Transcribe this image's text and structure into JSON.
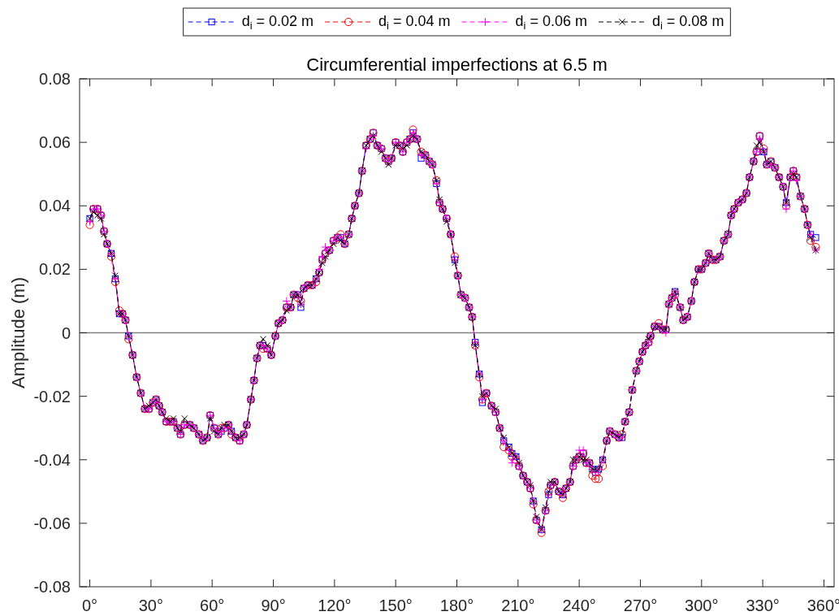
{
  "chart_data": {
    "type": "line",
    "title": "Circumferential imperfections at 6.5 m",
    "ylabel": "Amplitude (m)",
    "x": [
      0,
      1.8,
      3.8,
      5.5,
      7,
      8.5,
      10.5,
      12.5,
      14.5,
      16,
      17.5,
      19,
      21,
      23,
      25,
      27,
      29,
      31,
      32.5,
      34,
      35.5,
      37.5,
      39.5,
      41,
      43,
      44.5,
      46.5,
      49,
      51,
      53.5,
      55.5,
      57.5,
      59,
      61,
      63,
      64.5,
      66,
      68,
      69.5,
      71.5,
      73.5,
      75.5,
      77,
      79,
      80.5,
      82,
      83.5,
      85,
      87,
      89,
      91,
      92.5,
      94.5,
      96.5,
      98.5,
      100,
      102,
      103.5,
      105,
      107,
      109,
      111,
      112.5,
      114,
      115.5,
      117.5,
      119.5,
      121.5,
      123,
      125,
      127,
      128.5,
      130,
      132,
      133.5,
      135.5,
      137.5,
      139,
      141,
      143,
      145,
      146.5,
      148,
      150,
      152,
      153.5,
      155.5,
      157,
      158.5,
      160.5,
      162.5,
      164.5,
      166.5,
      168,
      170,
      171.5,
      173,
      175,
      177,
      179,
      180.5,
      182,
      184,
      186,
      187.5,
      189,
      191,
      192.5,
      194.5,
      197,
      199,
      201,
      203,
      205.5,
      207,
      209,
      210.5,
      212.5,
      214.5,
      216,
      217.5,
      219,
      221.5,
      223.5,
      225,
      226,
      228,
      230,
      232,
      233.5,
      235.5,
      237,
      238.5,
      240,
      242,
      243.5,
      245,
      246.5,
      248,
      249.5,
      251.5,
      253.5,
      255,
      257.5,
      259.5,
      261,
      262.5,
      264.5,
      266,
      268,
      269.5,
      271,
      272.5,
      274,
      275,
      277,
      279,
      281,
      282.5,
      284,
      285.5,
      287,
      289.5,
      291,
      293,
      295,
      296.5,
      298.5,
      300,
      302,
      303.5,
      305.5,
      307,
      309,
      311,
      313,
      314.5,
      316,
      318,
      320,
      322,
      323.5,
      325.5,
      327,
      328.5,
      330.5,
      332,
      334,
      336,
      338,
      340,
      341.5,
      343.5,
      345,
      346.5,
      348.5,
      350.5,
      352,
      353.5,
      356
    ],
    "series": [
      {
        "name": "d$_{i}$ = 0.02 m",
        "color": "#0000ff",
        "marker": "square",
        "values": [
          0.036,
          0.039,
          0.039,
          0.037,
          0.032,
          0.028,
          0.025,
          0.017,
          0.006,
          0.006,
          0.004,
          -0.001,
          -0.007,
          -0.014,
          -0.019,
          -0.024,
          -0.024,
          -0.022,
          -0.021,
          -0.023,
          -0.025,
          -0.028,
          -0.028,
          -0.028,
          -0.03,
          -0.032,
          -0.029,
          -0.029,
          -0.03,
          -0.032,
          -0.034,
          -0.033,
          -0.026,
          -0.03,
          -0.032,
          -0.031,
          -0.03,
          -0.029,
          -0.031,
          -0.033,
          -0.034,
          -0.032,
          -0.029,
          -0.021,
          -0.015,
          -0.008,
          -0.004,
          -0.004,
          -0.005,
          -0.007,
          -0.001,
          0.003,
          0.004,
          0.008,
          0.008,
          0.012,
          0.012,
          0.008,
          0.014,
          0.015,
          0.015,
          0.017,
          0.019,
          0.023,
          0.025,
          0.026,
          0.029,
          0.03,
          0.03,
          0.028,
          0.031,
          0.036,
          0.04,
          0.044,
          0.051,
          0.059,
          0.061,
          0.063,
          0.059,
          0.058,
          0.055,
          0.054,
          0.055,
          0.06,
          0.059,
          0.057,
          0.06,
          0.061,
          0.063,
          0.061,
          0.055,
          0.056,
          0.054,
          0.053,
          0.047,
          0.041,
          0.039,
          0.036,
          0.031,
          0.023,
          0.018,
          0.012,
          0.011,
          0.008,
          0.005,
          -0.003,
          -0.013,
          -0.022,
          -0.019,
          -0.023,
          -0.025,
          -0.03,
          -0.034,
          -0.036,
          -0.038,
          -0.039,
          -0.042,
          -0.045,
          -0.047,
          -0.049,
          -0.053,
          -0.059,
          -0.062,
          -0.056,
          -0.051,
          -0.048,
          -0.047,
          -0.05,
          -0.051,
          -0.049,
          -0.047,
          -0.042,
          -0.04,
          -0.039,
          -0.038,
          -0.041,
          -0.041,
          -0.043,
          -0.044,
          -0.043,
          -0.04,
          -0.034,
          -0.031,
          -0.032,
          -0.033,
          -0.033,
          -0.028,
          -0.025,
          -0.018,
          -0.012,
          -0.009,
          -0.006,
          -0.004,
          -0.003,
          -0.001,
          0.002,
          0.002,
          0.001,
          0.001,
          0.009,
          0.011,
          0.013,
          0.008,
          0.004,
          0.005,
          0.01,
          0.016,
          0.02,
          0.02,
          0.022,
          0.025,
          0.023,
          0.023,
          0.024,
          0.029,
          0.031,
          0.037,
          0.039,
          0.041,
          0.042,
          0.044,
          0.049,
          0.054,
          0.057,
          0.062,
          0.057,
          0.053,
          0.054,
          0.052,
          0.049,
          0.046,
          0.041,
          0.049,
          0.051,
          0.049,
          0.043,
          0.039,
          0.034,
          0.031,
          0.03
        ]
      },
      {
        "name": "d$_{i}$ = 0.04 m",
        "color": "#ff0000",
        "marker": "circle",
        "values": [
          0.034,
          0.039,
          0.039,
          0.037,
          0.032,
          0.028,
          0.024,
          0.016,
          0.007,
          0.006,
          0.004,
          -0.002,
          -0.007,
          -0.014,
          -0.019,
          -0.024,
          -0.024,
          -0.022,
          -0.021,
          -0.023,
          -0.025,
          -0.028,
          -0.028,
          -0.028,
          -0.03,
          -0.032,
          -0.029,
          -0.029,
          -0.03,
          -0.032,
          -0.034,
          -0.033,
          -0.026,
          -0.03,
          -0.032,
          -0.03,
          -0.03,
          -0.029,
          -0.032,
          -0.033,
          -0.034,
          -0.032,
          -0.029,
          -0.021,
          -0.015,
          -0.008,
          -0.004,
          -0.005,
          -0.005,
          -0.007,
          -0.001,
          0.003,
          0.004,
          0.008,
          0.008,
          0.012,
          0.011,
          0.01,
          0.014,
          0.015,
          0.015,
          0.016,
          0.019,
          0.023,
          0.025,
          0.026,
          0.029,
          0.03,
          0.031,
          0.028,
          0.031,
          0.036,
          0.04,
          0.044,
          0.051,
          0.059,
          0.061,
          0.063,
          0.059,
          0.058,
          0.055,
          0.054,
          0.055,
          0.06,
          0.059,
          0.057,
          0.06,
          0.061,
          0.064,
          0.061,
          0.057,
          0.056,
          0.054,
          0.053,
          0.048,
          0.041,
          0.039,
          0.036,
          0.031,
          0.024,
          0.018,
          0.012,
          0.011,
          0.008,
          0.005,
          -0.004,
          -0.014,
          -0.021,
          -0.019,
          -0.023,
          -0.025,
          -0.03,
          -0.036,
          -0.037,
          -0.039,
          -0.04,
          -0.042,
          -0.045,
          -0.047,
          -0.049,
          -0.054,
          -0.059,
          -0.063,
          -0.056,
          -0.05,
          -0.048,
          -0.047,
          -0.05,
          -0.052,
          -0.049,
          -0.047,
          -0.042,
          -0.04,
          -0.039,
          -0.038,
          -0.041,
          -0.041,
          -0.045,
          -0.046,
          -0.046,
          -0.042,
          -0.034,
          -0.031,
          -0.032,
          -0.033,
          -0.032,
          -0.028,
          -0.025,
          -0.018,
          -0.012,
          -0.009,
          -0.006,
          -0.004,
          -0.003,
          -0.001,
          0.002,
          0.003,
          0.001,
          0.001,
          0.009,
          0.011,
          0.012,
          0.008,
          0.004,
          0.005,
          0.01,
          0.016,
          0.02,
          0.02,
          0.022,
          0.025,
          0.023,
          0.023,
          0.024,
          0.029,
          0.031,
          0.037,
          0.039,
          0.041,
          0.042,
          0.044,
          0.049,
          0.054,
          0.057,
          0.062,
          0.058,
          0.053,
          0.054,
          0.052,
          0.049,
          0.046,
          0.04,
          0.049,
          0.051,
          0.049,
          0.043,
          0.039,
          0.034,
          0.029,
          0.027
        ]
      },
      {
        "name": "d$_{i}$ = 0.06 m",
        "color": "#ff00ff",
        "marker": "cross",
        "values": [
          0.035,
          0.039,
          0.039,
          0.037,
          0.032,
          0.028,
          0.025,
          0.017,
          0.006,
          0.006,
          0.004,
          -0.001,
          -0.007,
          -0.014,
          -0.019,
          -0.024,
          -0.024,
          -0.022,
          -0.021,
          -0.023,
          -0.025,
          -0.028,
          -0.028,
          -0.028,
          -0.03,
          -0.032,
          -0.029,
          -0.029,
          -0.03,
          -0.032,
          -0.034,
          -0.033,
          -0.026,
          -0.03,
          -0.032,
          -0.031,
          -0.03,
          -0.029,
          -0.031,
          -0.033,
          -0.034,
          -0.032,
          -0.029,
          -0.021,
          -0.015,
          -0.008,
          -0.004,
          -0.004,
          -0.005,
          -0.007,
          -0.001,
          0.003,
          0.004,
          0.01,
          0.008,
          0.012,
          0.012,
          0.009,
          0.014,
          0.015,
          0.015,
          0.017,
          0.02,
          0.024,
          0.027,
          0.026,
          0.029,
          0.03,
          0.03,
          0.028,
          0.031,
          0.036,
          0.04,
          0.044,
          0.051,
          0.058,
          0.061,
          0.062,
          0.059,
          0.058,
          0.055,
          0.054,
          0.055,
          0.06,
          0.059,
          0.057,
          0.06,
          0.061,
          0.063,
          0.061,
          0.056,
          0.056,
          0.054,
          0.053,
          0.047,
          0.041,
          0.039,
          0.036,
          0.031,
          0.023,
          0.018,
          0.012,
          0.011,
          0.008,
          0.005,
          -0.003,
          -0.013,
          -0.021,
          -0.019,
          -0.023,
          -0.025,
          -0.03,
          -0.034,
          -0.037,
          -0.041,
          -0.039,
          -0.042,
          -0.045,
          -0.047,
          -0.049,
          -0.053,
          -0.059,
          -0.062,
          -0.056,
          -0.051,
          -0.048,
          -0.047,
          -0.05,
          -0.051,
          -0.049,
          -0.047,
          -0.042,
          -0.04,
          -0.037,
          -0.037,
          -0.041,
          -0.041,
          -0.043,
          -0.044,
          -0.043,
          -0.04,
          -0.034,
          -0.031,
          -0.032,
          -0.033,
          -0.033,
          -0.028,
          -0.025,
          -0.018,
          -0.012,
          -0.009,
          -0.006,
          -0.004,
          -0.003,
          -0.001,
          0.002,
          0.002,
          0.001,
          0.0,
          0.009,
          0.011,
          0.013,
          0.008,
          0.004,
          0.005,
          0.01,
          0.016,
          0.02,
          0.02,
          0.022,
          0.025,
          0.023,
          0.023,
          0.024,
          0.029,
          0.031,
          0.037,
          0.039,
          0.041,
          0.042,
          0.044,
          0.049,
          0.054,
          0.057,
          0.061,
          0.057,
          0.053,
          0.053,
          0.052,
          0.049,
          0.046,
          0.039,
          0.049,
          0.051,
          0.048,
          0.043,
          0.039,
          0.034,
          0.031,
          0.026
        ]
      },
      {
        "name": "d$_{i}$ = 0.08 m",
        "color": "#000000",
        "marker": "x",
        "values": [
          0.036,
          0.038,
          0.037,
          0.036,
          0.031,
          0.028,
          0.025,
          0.018,
          0.006,
          0.006,
          0.004,
          -0.001,
          -0.007,
          -0.014,
          -0.019,
          -0.024,
          -0.023,
          -0.022,
          -0.021,
          -0.023,
          -0.025,
          -0.027,
          -0.028,
          -0.027,
          -0.03,
          -0.031,
          -0.027,
          -0.029,
          -0.03,
          -0.032,
          -0.034,
          -0.033,
          -0.027,
          -0.031,
          -0.032,
          -0.03,
          -0.029,
          -0.029,
          -0.031,
          -0.033,
          -0.033,
          -0.032,
          -0.029,
          -0.021,
          -0.015,
          -0.008,
          -0.004,
          -0.002,
          -0.004,
          -0.007,
          -0.001,
          0.003,
          0.004,
          0.007,
          0.008,
          0.012,
          0.012,
          0.009,
          0.014,
          0.015,
          0.015,
          0.017,
          0.019,
          0.022,
          0.024,
          0.026,
          0.028,
          0.03,
          0.029,
          0.028,
          0.031,
          0.036,
          0.04,
          0.044,
          0.051,
          0.059,
          0.061,
          0.062,
          0.059,
          0.057,
          0.055,
          0.053,
          0.055,
          0.059,
          0.059,
          0.058,
          0.059,
          0.061,
          0.062,
          0.061,
          0.057,
          0.056,
          0.054,
          0.053,
          0.048,
          0.042,
          0.039,
          0.035,
          0.031,
          0.022,
          0.018,
          0.012,
          0.011,
          0.008,
          0.005,
          -0.004,
          -0.013,
          -0.02,
          -0.019,
          -0.023,
          -0.024,
          -0.03,
          -0.033,
          -0.036,
          -0.038,
          -0.039,
          -0.041,
          -0.045,
          -0.047,
          -0.048,
          -0.053,
          -0.058,
          -0.062,
          -0.055,
          -0.05,
          -0.047,
          -0.047,
          -0.05,
          -0.051,
          -0.049,
          -0.047,
          -0.04,
          -0.04,
          -0.039,
          -0.04,
          -0.04,
          -0.041,
          -0.043,
          -0.043,
          -0.043,
          -0.04,
          -0.034,
          -0.031,
          -0.032,
          -0.033,
          -0.032,
          -0.028,
          -0.025,
          -0.018,
          -0.012,
          -0.009,
          -0.006,
          -0.004,
          -0.002,
          -0.001,
          0.002,
          0.002,
          0.001,
          0.001,
          0.009,
          0.011,
          0.013,
          0.008,
          0.004,
          0.005,
          0.01,
          0.016,
          0.02,
          0.02,
          0.022,
          0.025,
          0.023,
          0.023,
          0.024,
          0.029,
          0.031,
          0.037,
          0.039,
          0.041,
          0.042,
          0.044,
          0.049,
          0.054,
          0.059,
          0.06,
          0.057,
          0.053,
          0.054,
          0.052,
          0.049,
          0.046,
          0.041,
          0.049,
          0.05,
          0.049,
          0.043,
          0.039,
          0.034,
          0.03,
          0.026
        ]
      }
    ],
    "xlim": [
      -5,
      365
    ],
    "xticks": [
      {
        "value": 0,
        "label": "0°"
      },
      {
        "value": 30,
        "label": "30°"
      },
      {
        "value": 60,
        "label": "60°"
      },
      {
        "value": 90,
        "label": "90°"
      },
      {
        "value": 120,
        "label": "120°"
      },
      {
        "value": 150,
        "label": "150°"
      },
      {
        "value": 180,
        "label": "180°"
      },
      {
        "value": 210,
        "label": "210°"
      },
      {
        "value": 240,
        "label": "240°"
      },
      {
        "value": 270,
        "label": "270°"
      },
      {
        "value": 300,
        "label": "300°"
      },
      {
        "value": 330,
        "label": "330°"
      },
      {
        "value": 360,
        "label": "360°"
      }
    ],
    "ylim": [
      -0.08,
      0.08
    ],
    "yticks": [
      -0.08,
      -0.06,
      -0.04,
      -0.02,
      0,
      0.02,
      0.04,
      0.06,
      0.08
    ],
    "ref_lines": [
      {
        "axis": "y",
        "value": 0,
        "color": "#808080"
      }
    ],
    "legend": "top",
    "line_style": "dashed"
  }
}
